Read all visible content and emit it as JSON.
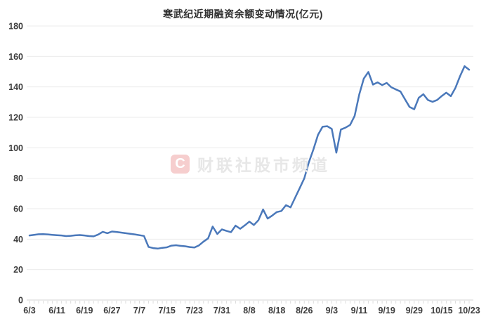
{
  "title": "寒武纪近期融资余额变动情况(亿元)",
  "watermark": {
    "logo_letter": "C",
    "text": "财联社股市频道"
  },
  "colors": {
    "line": "#4a78ba",
    "grid": "#ebebeb",
    "axis": "#d4d4d4",
    "tick": "#dcdcdc",
    "label": "#3c3c3c",
    "title": "#2f2f2f",
    "watermark_text": "#e7e7e7",
    "watermark_logo_bg": "rgba(224,92,92,0.30)"
  },
  "chart_data": {
    "type": "line",
    "title": "寒武纪近期融资余额变动情况(亿元)",
    "xlabel": "",
    "ylabel": "",
    "ylim": [
      0,
      180
    ],
    "y_ticks": [
      0,
      20,
      40,
      60,
      80,
      100,
      120,
      140,
      160,
      180
    ],
    "x_tick_labels": [
      "6/3",
      "6/11",
      "6/19",
      "6/27",
      "7/7",
      "7/15",
      "7/23",
      "7/31",
      "8/8",
      "8/18",
      "8/26",
      "9/3",
      "9/11",
      "9/19",
      "9/29",
      "10/15",
      "10/23"
    ],
    "x_tick_indices": [
      0,
      6,
      12,
      18,
      24,
      30,
      36,
      42,
      48,
      54,
      60,
      66,
      72,
      78,
      84,
      90,
      96
    ],
    "grid": true,
    "legend_position": "none",
    "series": [
      {
        "name": "融资余额(亿元)",
        "x": [
          "6/3",
          "6/4",
          "6/5",
          "6/6",
          "6/9",
          "6/10",
          "6/11",
          "6/12",
          "6/13",
          "6/16",
          "6/17",
          "6/18",
          "6/19",
          "6/20",
          "6/23",
          "6/24",
          "6/25",
          "6/26",
          "6/27",
          "6/30",
          "7/1",
          "7/2",
          "7/3",
          "7/4",
          "7/7",
          "7/8",
          "7/9",
          "7/10",
          "7/11",
          "7/14",
          "7/15",
          "7/16",
          "7/17",
          "7/18",
          "7/21",
          "7/22",
          "7/23",
          "7/24",
          "7/25",
          "7/28",
          "7/29",
          "7/30",
          "7/31",
          "8/1",
          "8/4",
          "8/5",
          "8/6",
          "8/7",
          "8/8",
          "8/11",
          "8/12",
          "8/13",
          "8/14",
          "8/15",
          "8/18",
          "8/19",
          "8/20",
          "8/21",
          "8/22",
          "8/25",
          "8/26",
          "8/27",
          "8/28",
          "8/29",
          "9/1",
          "9/2",
          "9/3",
          "9/4",
          "9/5",
          "9/8",
          "9/9",
          "9/10",
          "9/11",
          "9/12",
          "9/15",
          "9/16",
          "9/17",
          "9/18",
          "9/19",
          "9/22",
          "9/23",
          "9/24",
          "9/25",
          "9/26",
          "9/29",
          "9/30",
          "10/9",
          "10/10",
          "10/13",
          "10/14",
          "10/15",
          "10/16",
          "10/17",
          "10/20",
          "10/21",
          "10/22",
          "10/23"
        ],
        "values": [
          42.4,
          42.8,
          43.2,
          43.3,
          43.1,
          42.8,
          42.6,
          42.4,
          42.0,
          42.2,
          42.5,
          42.7,
          42.4,
          42.0,
          41.8,
          43.0,
          44.8,
          43.9,
          45.0,
          44.7,
          44.3,
          43.9,
          43.5,
          43.1,
          42.6,
          42.1,
          34.9,
          34.1,
          33.8,
          34.3,
          34.6,
          35.7,
          36.0,
          35.6,
          35.3,
          34.8,
          34.5,
          35.9,
          38.4,
          40.5,
          48.3,
          43.4,
          46.4,
          45.4,
          44.6,
          48.9,
          46.8,
          49.0,
          51.5,
          49.3,
          52.5,
          59.5,
          53.5,
          55.5,
          57.8,
          58.5,
          62.3,
          60.9,
          67.2,
          73.5,
          80.0,
          90.5,
          99.0,
          108.5,
          113.8,
          114.2,
          112.4,
          96.8,
          112.0,
          113.2,
          115.0,
          121.0,
          135.0,
          145.5,
          149.8,
          141.5,
          143.0,
          141.2,
          142.6,
          139.8,
          138.3,
          137.0,
          131.8,
          126.8,
          125.3,
          132.9,
          135.2,
          131.4,
          130.2,
          131.4,
          134.0,
          136.2,
          133.9,
          139.3,
          147.0,
          153.6,
          151.3
        ]
      }
    ]
  }
}
